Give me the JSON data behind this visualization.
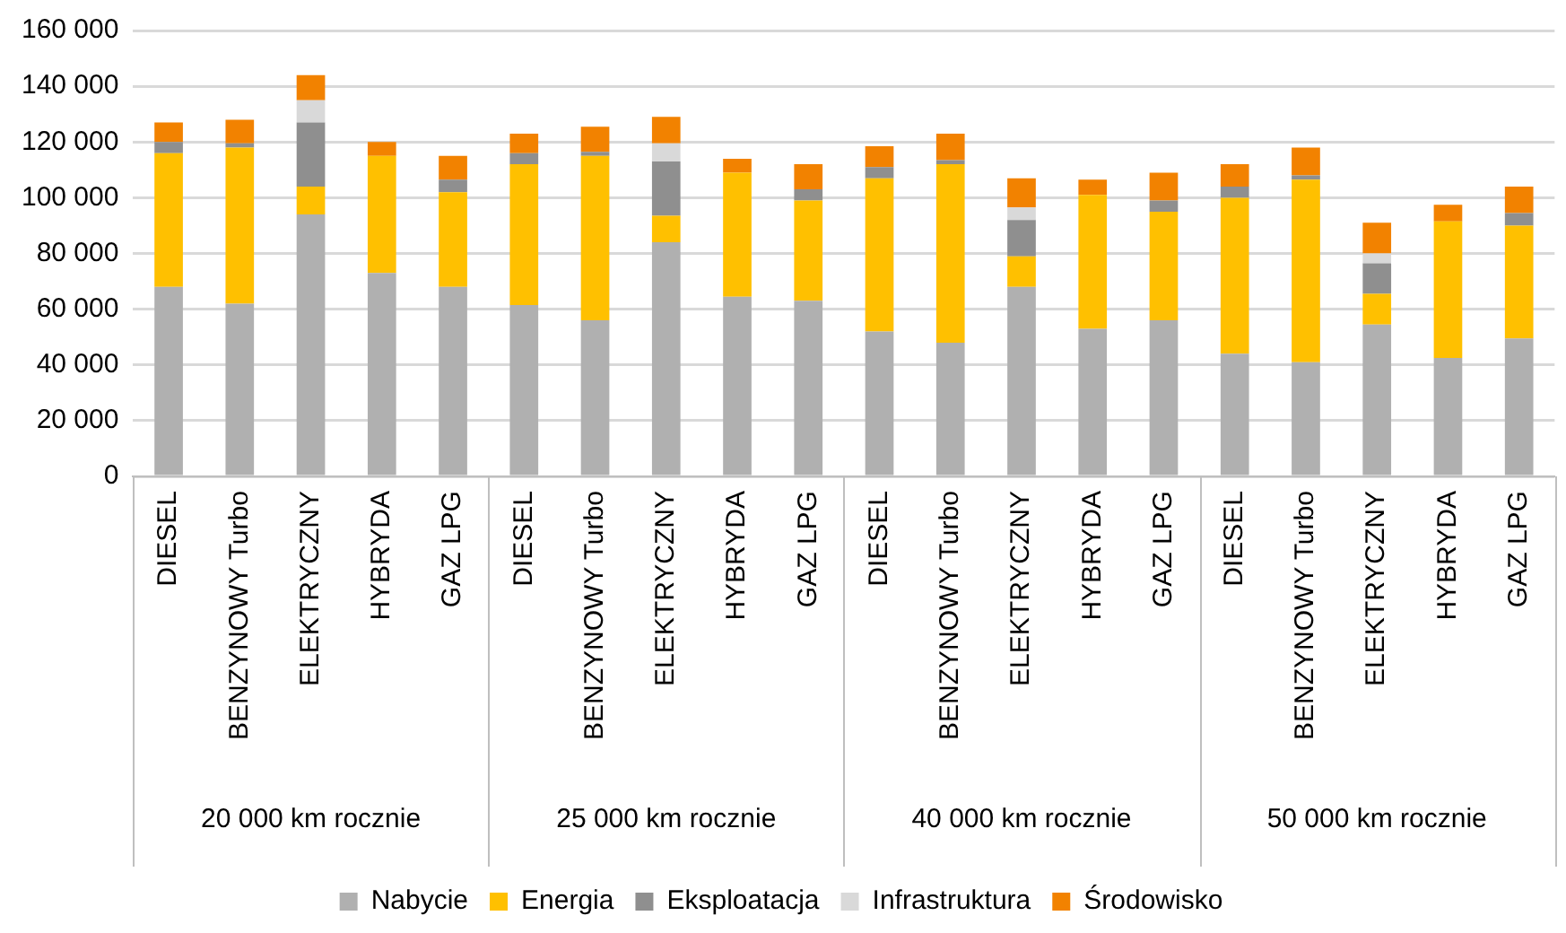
{
  "chart_data": {
    "type": "bar",
    "stacked": true,
    "categories": [
      "DIESEL",
      "BENZYNOWY Turbo",
      "ELEKTRYCZNY",
      "HYBRYDA",
      "GAZ LPG",
      "DIESEL",
      "BENZYNOWY Turbo",
      "ELEKTRYCZNY",
      "HYBRYDA",
      "GAZ LPG",
      "DIESEL",
      "BENZYNOWY Turbo",
      "ELEKTRYCZNY",
      "HYBRYDA",
      "GAZ LPG",
      "DIESEL",
      "BENZYNOWY Turbo",
      "ELEKTRYCZNY",
      "HYBRYDA",
      "GAZ LPG"
    ],
    "annotations": [
      "20 000 km rocznie",
      "25 000 km rocznie",
      "40 000 km rocznie",
      "50 000 km rocznie"
    ],
    "series": [
      {
        "name": "Nabycie",
        "color": "#b0b0b0",
        "values": [
          68000,
          62000,
          94000,
          73000,
          68000,
          61500,
          56000,
          84000,
          64500,
          63000,
          52000,
          48000,
          68000,
          53000,
          56000,
          44000,
          41000,
          54500,
          42500,
          49500
        ]
      },
      {
        "name": "Energia",
        "color": "#ffc000",
        "values": [
          48000,
          56000,
          10000,
          42000,
          34000,
          50500,
          59000,
          9500,
          44500,
          36000,
          55000,
          64000,
          11000,
          48000,
          39000,
          56000,
          65500,
          11000,
          49000,
          40500
        ]
      },
      {
        "name": "Eksploatacja",
        "color": "#8f8f8f",
        "values": [
          4000,
          1500,
          23000,
          0,
          4500,
          4000,
          1500,
          19500,
          0,
          4000,
          4000,
          1500,
          13000,
          0,
          4000,
          4000,
          1500,
          11000,
          0,
          4500
        ]
      },
      {
        "name": "Infrastruktura",
        "color": "#d9d9d9",
        "values": [
          0,
          0,
          8000,
          0,
          0,
          0,
          0,
          6500,
          0,
          0,
          0,
          0,
          4500,
          0,
          0,
          0,
          0,
          3500,
          0,
          0
        ]
      },
      {
        "name": "Środowisko",
        "color": "#f28200",
        "values": [
          7000,
          8500,
          9000,
          5000,
          8500,
          7000,
          9000,
          9500,
          5000,
          9000,
          7500,
          9500,
          10500,
          5500,
          10000,
          8000,
          10000,
          11000,
          6000,
          9500
        ]
      }
    ],
    "ylim": [
      0,
      160000
    ],
    "yticks": [
      {
        "value": 0,
        "label": "0"
      },
      {
        "value": 20000,
        "label": "20 000"
      },
      {
        "value": 40000,
        "label": "40 000"
      },
      {
        "value": 60000,
        "label": "60 000"
      },
      {
        "value": 80000,
        "label": "80 000"
      },
      {
        "value": 100000,
        "label": "100 000"
      },
      {
        "value": 120000,
        "label": "120 000"
      },
      {
        "value": 140000,
        "label": "140 000"
      },
      {
        "value": 160000,
        "label": "160 000"
      }
    ],
    "grid": "y",
    "legend": "bottom"
  }
}
